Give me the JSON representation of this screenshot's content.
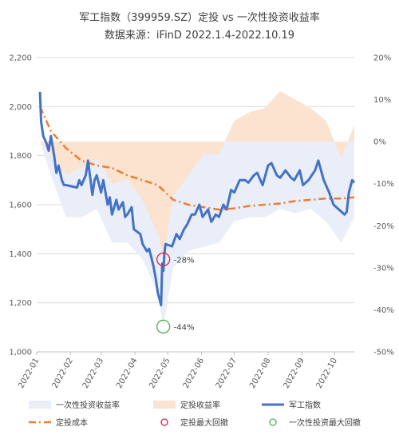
{
  "chart_data": {
    "type": "line",
    "title": "军工指数（399959.SZ）定投 vs 一次性投资收益率",
    "subtitle": "数据来源：iFinD 2022.1.4-2022.10.19",
    "xlabel": "",
    "ylabel": "",
    "y2label": "",
    "x_tick_labels": [
      "2022-01",
      "2022-02",
      "2022-03",
      "2022-04",
      "2022-05",
      "2022-06",
      "2022-07",
      "2022-08",
      "2022-09",
      "2022-10"
    ],
    "x_tick_dates": [
      "2022-01-01",
      "2022-02-01",
      "2022-03-01",
      "2022-04-01",
      "2022-05-01",
      "2022-06-01",
      "2022-07-01",
      "2022-08-01",
      "2022-09-01",
      "2022-10-01"
    ],
    "x_range": [
      "2022-01-01",
      "2022-10-19"
    ],
    "ylim": [
      1000,
      2200
    ],
    "y_ticks": [
      "1,000",
      "1,200",
      "1,400",
      "1,600",
      "1,800",
      "2,000",
      "2,200"
    ],
    "y_tick_values": [
      1000,
      1200,
      1400,
      1600,
      1800,
      2000,
      2200
    ],
    "y2lim": [
      -50,
      20
    ],
    "y2_ticks": [
      "-50%",
      "-40%",
      "-30%",
      "-20%",
      "-10%",
      "0%",
      "10%",
      "20%"
    ],
    "y2_tick_values": [
      -50,
      -40,
      -30,
      -20,
      -10,
      0,
      10,
      20
    ],
    "grid": "horizontal",
    "legend_position": "bottom",
    "legend": [
      {
        "key": "lump",
        "label": "一次性投资收益率",
        "kind": "area",
        "color": "#e9eef8"
      },
      {
        "key": "dca",
        "label": "定投收益率",
        "kind": "area",
        "color": "#fbe3d0"
      },
      {
        "key": "index",
        "label": "军工指数",
        "kind": "line",
        "color": "#4472c4"
      },
      {
        "key": "cost",
        "label": "定投成本",
        "kind": "dashdot",
        "color": "#ed7d31"
      },
      {
        "key": "dca_mdd",
        "label": "定投最大回撤",
        "kind": "circle",
        "color": "#e0203a"
      },
      {
        "key": "lump_mdd",
        "label": "一次性投资最大回撤",
        "kind": "circle",
        "color": "#4caf50"
      }
    ],
    "series": [
      {
        "key": "index",
        "name": "军工指数",
        "axis": "left",
        "color": "#4472c4",
        "x": [
          "2022-01-04",
          "2022-01-05",
          "2022-01-06",
          "2022-01-07",
          "2022-01-10",
          "2022-01-12",
          "2022-01-14",
          "2022-01-17",
          "2022-01-19",
          "2022-01-21",
          "2022-01-24",
          "2022-01-26",
          "2022-01-28",
          "2022-02-07",
          "2022-02-09",
          "2022-02-11",
          "2022-02-15",
          "2022-02-17",
          "2022-02-21",
          "2022-02-23",
          "2022-02-25",
          "2022-03-01",
          "2022-03-03",
          "2022-03-07",
          "2022-03-09",
          "2022-03-11",
          "2022-03-15",
          "2022-03-17",
          "2022-03-21",
          "2022-03-23",
          "2022-03-25",
          "2022-03-29",
          "2022-03-31",
          "2022-04-06",
          "2022-04-08",
          "2022-04-12",
          "2022-04-14",
          "2022-04-18",
          "2022-04-20",
          "2022-04-22",
          "2022-04-25",
          "2022-04-26",
          "2022-04-27",
          "2022-04-28",
          "2022-04-29",
          "2022-05-05",
          "2022-05-09",
          "2022-05-12",
          "2022-05-16",
          "2022-05-19",
          "2022-05-23",
          "2022-05-26",
          "2022-05-30",
          "2022-06-02",
          "2022-06-07",
          "2022-06-10",
          "2022-06-14",
          "2022-06-17",
          "2022-06-21",
          "2022-06-24",
          "2022-06-28",
          "2022-07-01",
          "2022-07-06",
          "2022-07-11",
          "2022-07-14",
          "2022-07-19",
          "2022-07-22",
          "2022-07-27",
          "2022-08-01",
          "2022-08-04",
          "2022-08-09",
          "2022-08-12",
          "2022-08-17",
          "2022-08-22",
          "2022-08-25",
          "2022-08-30",
          "2022-09-02",
          "2022-09-07",
          "2022-09-13",
          "2022-09-16",
          "2022-09-21",
          "2022-09-26",
          "2022-09-30",
          "2022-10-10",
          "2022-10-12",
          "2022-10-14",
          "2022-10-17",
          "2022-10-19"
        ],
        "values": [
          2060,
          1940,
          1910,
          1880,
          1850,
          1820,
          1880,
          1800,
          1730,
          1760,
          1700,
          1680,
          1680,
          1670,
          1700,
          1680,
          1720,
          1780,
          1640,
          1700,
          1720,
          1650,
          1700,
          1600,
          1630,
          1560,
          1620,
          1580,
          1610,
          1550,
          1560,
          1590,
          1500,
          1480,
          1440,
          1410,
          1420,
          1350,
          1300,
          1240,
          1190,
          1360,
          1330,
          1400,
          1440,
          1430,
          1480,
          1460,
          1500,
          1520,
          1560,
          1560,
          1600,
          1550,
          1580,
          1530,
          1560,
          1550,
          1600,
          1580,
          1660,
          1650,
          1700,
          1700,
          1690,
          1720,
          1730,
          1680,
          1760,
          1770,
          1720,
          1710,
          1740,
          1710,
          1700,
          1740,
          1680,
          1700,
          1740,
          1780,
          1700,
          1650,
          1600,
          1560,
          1570,
          1650,
          1700,
          1690
        ]
      },
      {
        "key": "cost",
        "name": "定投成本",
        "axis": "left",
        "color": "#ed7d31",
        "x": [
          "2022-01-04",
          "2022-01-14",
          "2022-01-28",
          "2022-02-11",
          "2022-02-25",
          "2022-03-11",
          "2022-03-25",
          "2022-04-08",
          "2022-04-22",
          "2022-05-06",
          "2022-05-20",
          "2022-06-03",
          "2022-06-17",
          "2022-07-01",
          "2022-07-15",
          "2022-07-29",
          "2022-08-12",
          "2022-08-26",
          "2022-09-09",
          "2022-09-23",
          "2022-10-07",
          "2022-10-19"
        ],
        "values": [
          2000,
          1900,
          1830,
          1780,
          1760,
          1750,
          1720,
          1700,
          1680,
          1620,
          1600,
          1590,
          1580,
          1585,
          1595,
          1600,
          1605,
          1615,
          1620,
          1625,
          1625,
          1630
        ]
      },
      {
        "key": "lump",
        "name": "一次性投资收益率",
        "axis": "right",
        "color": "#e9eef8",
        "x": [
          "2022-01-04",
          "2022-01-14",
          "2022-01-28",
          "2022-02-11",
          "2022-02-25",
          "2022-03-11",
          "2022-03-25",
          "2022-04-08",
          "2022-04-22",
          "2022-04-27",
          "2022-05-06",
          "2022-05-20",
          "2022-06-03",
          "2022-06-17",
          "2022-07-01",
          "2022-07-15",
          "2022-07-29",
          "2022-08-12",
          "2022-08-26",
          "2022-09-09",
          "2022-09-23",
          "2022-10-07",
          "2022-10-19"
        ],
        "values": [
          0,
          -8,
          -18,
          -18,
          -16,
          -24,
          -24,
          -28,
          -36,
          -44,
          -30,
          -26,
          -25,
          -24,
          -19,
          -18,
          -18,
          -16,
          -17,
          -16,
          -19,
          -24,
          -18
        ]
      },
      {
        "key": "dca",
        "name": "定投收益率",
        "axis": "right",
        "color": "#fbe3d0",
        "x": [
          "2022-01-04",
          "2022-01-14",
          "2022-01-28",
          "2022-02-11",
          "2022-02-25",
          "2022-03-11",
          "2022-03-25",
          "2022-04-08",
          "2022-04-22",
          "2022-04-27",
          "2022-05-06",
          "2022-05-20",
          "2022-06-03",
          "2022-06-17",
          "2022-07-01",
          "2022-07-15",
          "2022-07-29",
          "2022-08-12",
          "2022-08-26",
          "2022-09-09",
          "2022-09-23",
          "2022-10-07",
          "2022-10-19"
        ],
        "values": [
          0,
          -3,
          -8,
          -6,
          -4,
          -10,
          -9,
          -14,
          -22,
          -28,
          -13,
          -8,
          -3,
          -3,
          5,
          7,
          8,
          12,
          10,
          8,
          5,
          -4,
          4
        ]
      }
    ],
    "annotations": [
      {
        "key": "dca_mdd",
        "label": "-28%",
        "date": "2022-04-27",
        "value": -28,
        "axis": "right",
        "color": "#e0203a"
      },
      {
        "key": "lump_mdd",
        "label": "-44%",
        "date": "2022-04-27",
        "value": -44,
        "axis": "right",
        "color": "#4caf50"
      }
    ]
  }
}
